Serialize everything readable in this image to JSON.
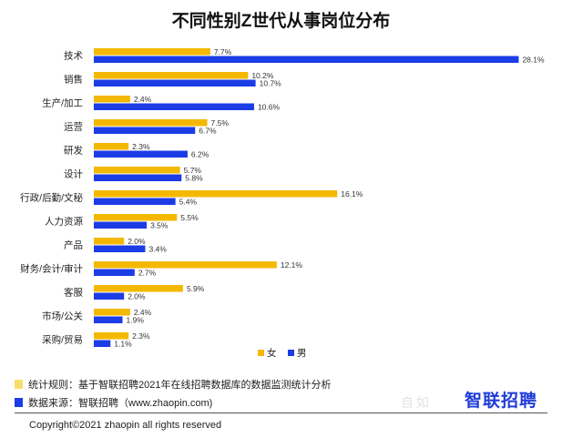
{
  "colors": {
    "female": "#f5b800",
    "male": "#1c3ce6",
    "footnote_yellow": "#f8dd6c",
    "footnote_blue": "#1c3ce6",
    "brand": "#1f3bd8"
  },
  "chart_data": {
    "type": "bar",
    "orientation": "horizontal",
    "title": "不同性别Z世代从事岗位分布",
    "categories": [
      "技术",
      "销售",
      "生产/加工",
      "运营",
      "研发",
      "设计",
      "行政/后勤/文秘",
      "人力资源",
      "产品",
      "财务/会计/审计",
      "客服",
      "市场/公关",
      "采购/贸易"
    ],
    "series": [
      {
        "name": "女",
        "values": [
          7.7,
          10.2,
          2.4,
          7.5,
          2.3,
          5.7,
          16.1,
          5.5,
          2.0,
          12.1,
          5.9,
          2.4,
          2.3
        ]
      },
      {
        "name": "男",
        "values": [
          28.1,
          10.7,
          10.6,
          6.7,
          6.2,
          5.8,
          5.4,
          3.5,
          3.4,
          2.7,
          2.0,
          1.9,
          1.1
        ]
      }
    ],
    "value_suffix": "%",
    "legend_position": "bottom-right",
    "xlabel": "",
    "ylabel": "",
    "grid": false
  },
  "footnotes": {
    "rule": "统计规则：基于智联招聘2021年在线招聘数据库的数据监测统计分析",
    "source": "数据来源：智联招聘（www.zhaopin.com)"
  },
  "copyright": "Copyright©2021 zhaopin  all rights reserved",
  "logo_text": "智联招聘",
  "watermark_text": "自如"
}
